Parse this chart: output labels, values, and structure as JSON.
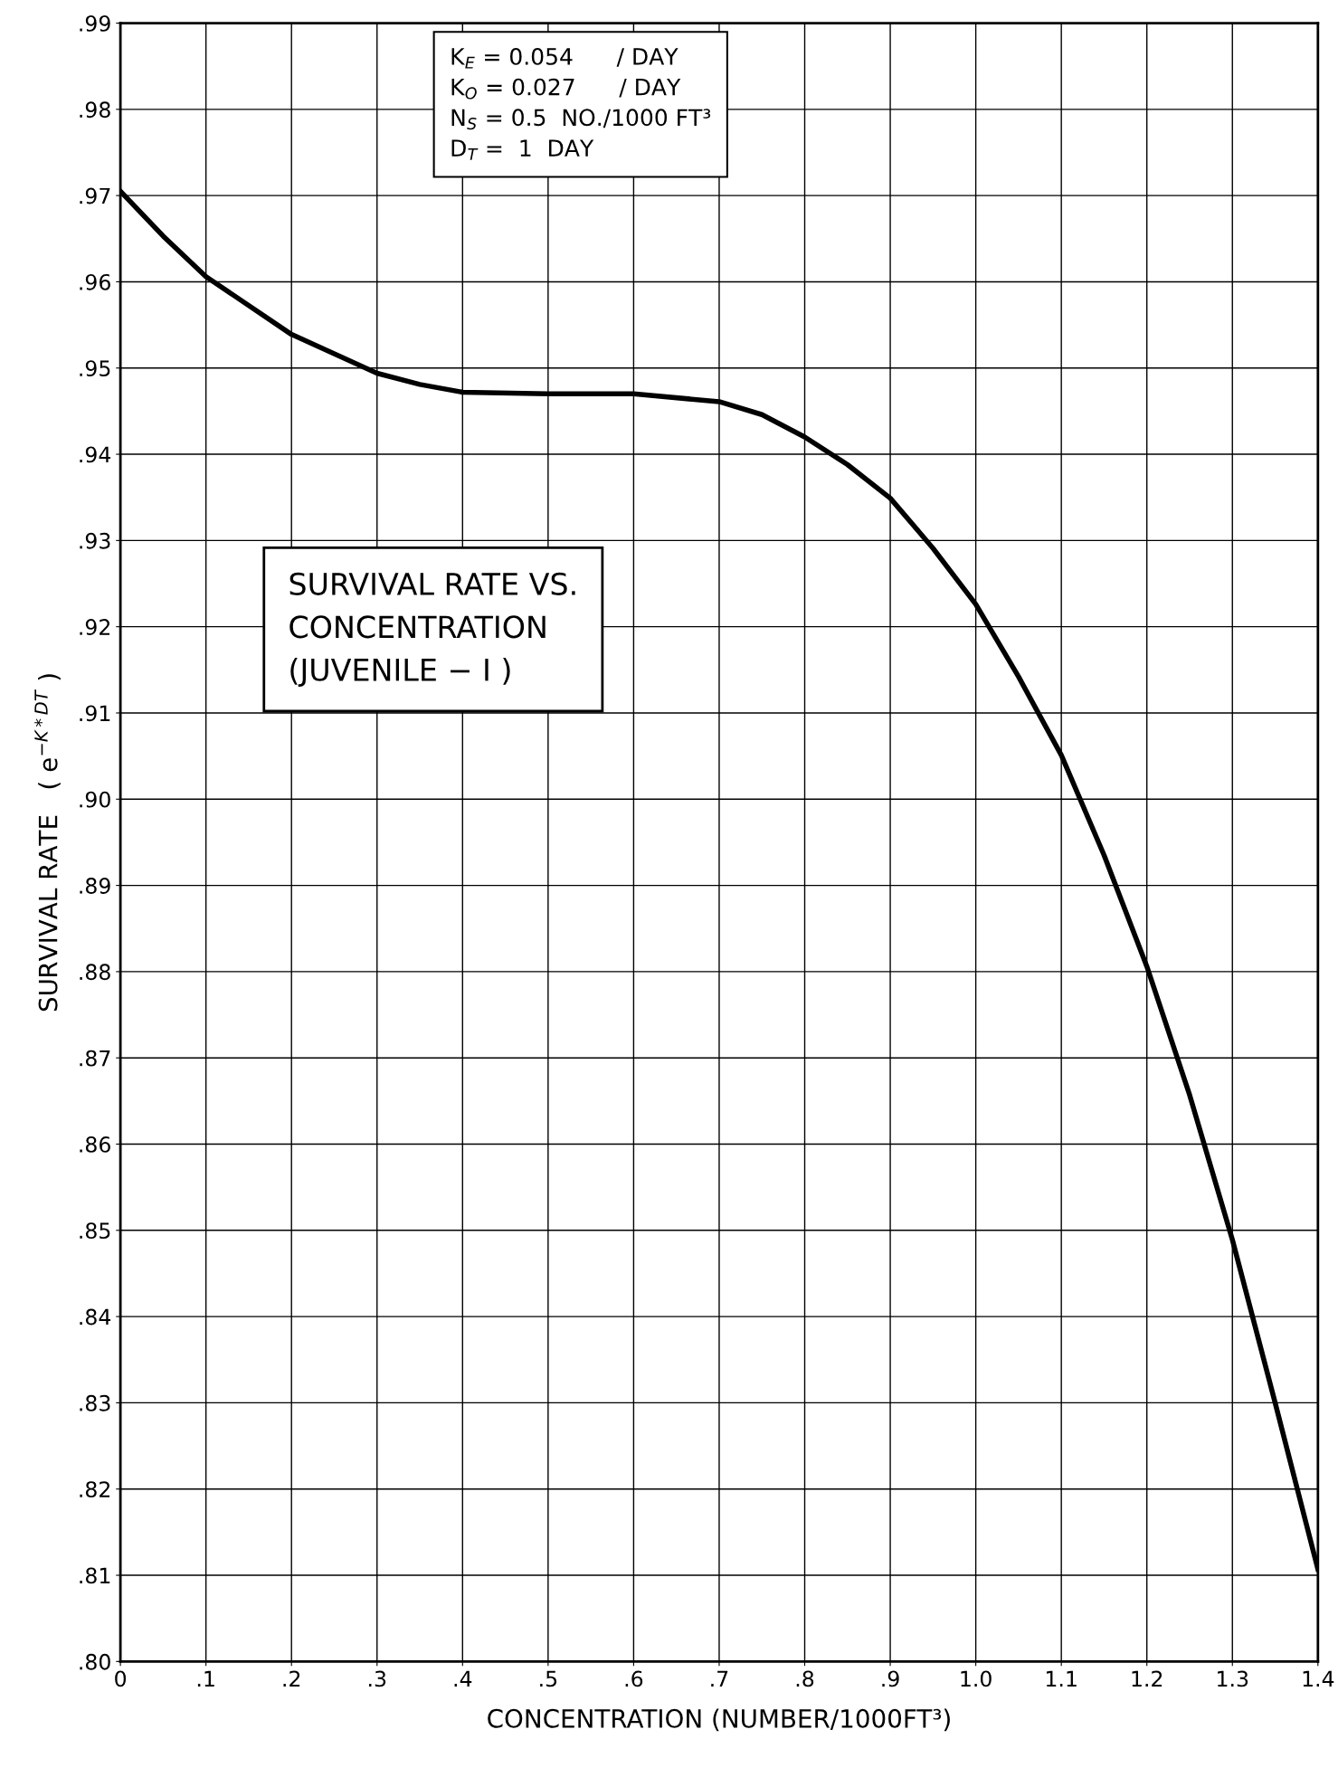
{
  "chart_data": {
    "type": "line",
    "title": "SURVIVAL RATE VS.\nCONCENTRATION\n(JUVENILE − I )",
    "xlabel": "CONCENTRATION (NUMBER/1000FT³)",
    "ylabel": "SURVIVAL RATE   ( e$^{−K*DT}$ )",
    "annotations": [
      "K$_{E}$ = 0.054      / DAY\nK$_{O}$ = 0.027      / DAY\nN$_{S}$ = 0.5  NO./1000 FT³\nD$_{T}$ =  1  DAY"
    ],
    "x": [
      0,
      0.05,
      0.1,
      0.2,
      0.3,
      0.35,
      0.4,
      0.5,
      0.6,
      0.7,
      0.75,
      0.8,
      0.85,
      0.9,
      0.95,
      1.0,
      1.05,
      1.1,
      1.15,
      1.2,
      1.25,
      1.3,
      1.35,
      1.4
    ],
    "series": [
      {
        "color": "#000000",
        "values": [
          0.9705,
          0.9653,
          0.9606,
          0.9539,
          0.9494,
          0.9481,
          0.9472,
          0.947,
          0.947,
          0.9461,
          0.9446,
          0.942,
          0.9388,
          0.9349,
          0.9291,
          0.9226,
          0.9142,
          0.9051,
          0.8935,
          0.8806,
          0.8657,
          0.8489,
          0.83,
          0.8107
        ]
      }
    ],
    "xlim": [
      0,
      1.4
    ],
    "ylim": [
      0.8,
      0.99
    ],
    "xticks": [
      0,
      {
        "value": 0.1,
        "label": ".1"
      },
      {
        "value": 0.2,
        "label": ".2"
      },
      {
        "value": 0.3,
        "label": ".3"
      },
      {
        "value": 0.4,
        "label": ".4"
      },
      {
        "value": 0.5,
        "label": ".5"
      },
      {
        "value": 0.6,
        "label": ".6"
      },
      {
        "value": 0.7,
        "label": ".7"
      },
      {
        "value": 0.8,
        "label": ".8"
      },
      {
        "value": 0.9,
        "label": ".9"
      },
      {
        "value": 1.0,
        "label": "1.0"
      },
      1.1,
      1.2,
      1.3,
      1.4
    ],
    "yticks": [
      {
        "value": 0.8,
        "label": ".80"
      },
      {
        "value": 0.81,
        "label": ".81"
      },
      {
        "value": 0.82,
        "label": ".82"
      },
      {
        "value": 0.83,
        "label": ".83"
      },
      {
        "value": 0.84,
        "label": ".84"
      },
      {
        "value": 0.85,
        "label": ".85"
      },
      {
        "value": 0.86,
        "label": ".86"
      },
      {
        "value": 0.87,
        "label": ".87"
      },
      {
        "value": 0.88,
        "label": ".88"
      },
      {
        "value": 0.89,
        "label": ".89"
      },
      {
        "value": 0.9,
        "label": ".90"
      },
      {
        "value": 0.91,
        "label": ".91"
      },
      {
        "value": 0.92,
        "label": ".92"
      },
      {
        "value": 0.93,
        "label": ".93"
      },
      {
        "value": 0.94,
        "label": ".94"
      },
      {
        "value": 0.95,
        "label": ".95"
      },
      {
        "value": 0.96,
        "label": ".96"
      },
      {
        "value": 0.97,
        "label": ".97"
      },
      {
        "value": 0.98,
        "label": ".98"
      },
      {
        "value": 0.99,
        "label": ".99"
      }
    ],
    "grid": true,
    "marker": "none",
    "line_style": "solid"
  }
}
